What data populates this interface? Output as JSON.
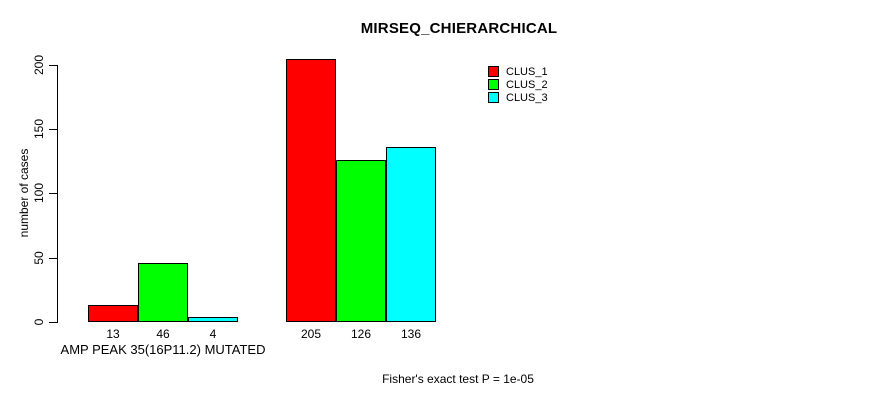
{
  "chart_data": {
    "type": "bar",
    "title": "MIRSEQ_CHIERARCHICAL",
    "ylabel": "number of cases",
    "yticks": [
      0,
      50,
      100,
      150,
      200
    ],
    "ylim": [
      0,
      205
    ],
    "grid": false,
    "legend_position": "top-right",
    "series": [
      {
        "name": "CLUS_1",
        "color": "#FF0000"
      },
      {
        "name": "CLUS_2",
        "color": "#00FF00"
      },
      {
        "name": "CLUS_3",
        "color": "#00FFFF"
      }
    ],
    "groups": [
      {
        "label": "AMP PEAK 35(16P11.2) MUTATED",
        "values": [
          13,
          46,
          4
        ]
      },
      {
        "label": "",
        "values": [
          205,
          126,
          136
        ]
      }
    ],
    "annotation": "Fisher's exact test P = 1e-05"
  }
}
